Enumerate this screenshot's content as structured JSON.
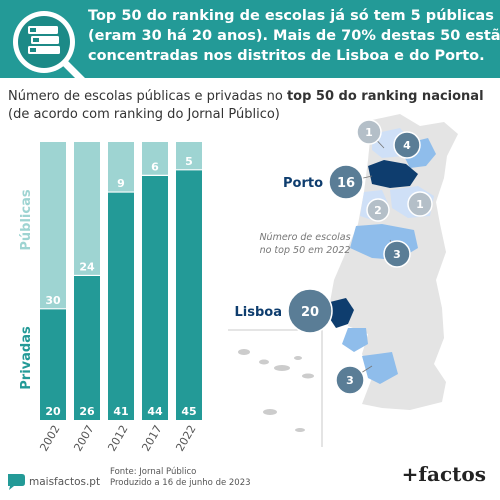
{
  "header": {
    "headline_lines": [
      "Top 50 do ranking de escolas já só tem 5 públicas",
      "(eram 30 há 20 anos). Mais de 70% destas 50 estão",
      "concentradas nos distritos de Lisboa e do Porto."
    ],
    "logo": "books-magnifier-icon"
  },
  "subtitle": {
    "line1_prefix": "Número de escolas públicas e privadas no ",
    "line1_bold": "top 50 do ranking nacional",
    "line2": "(de acordo com ranking do Jornal Público)"
  },
  "chart_data": {
    "type": "bar",
    "stacked": true,
    "categories": [
      "2002",
      "2007",
      "2012",
      "2017",
      "2022"
    ],
    "series": [
      {
        "name": "Privadas",
        "values": [
          20,
          26,
          41,
          44,
          45
        ],
        "color": "#239a97"
      },
      {
        "name": "Públicas",
        "values": [
          30,
          24,
          9,
          6,
          5
        ],
        "color": "#9ed4d2"
      }
    ],
    "ylim": [
      0,
      50
    ],
    "grid": false
  },
  "map": {
    "caption_lines": [
      "Número de escolas",
      "no top 50 em 2022"
    ],
    "districts": [
      {
        "label": "",
        "value": "1"
      },
      {
        "label": "",
        "value": "4"
      },
      {
        "label": "Porto",
        "value": "16"
      },
      {
        "label": "",
        "value": "2"
      },
      {
        "label": "",
        "value": "1"
      },
      {
        "label": "",
        "value": "3"
      },
      {
        "label": "Lisboa",
        "value": "20"
      },
      {
        "label": "",
        "value": "3"
      }
    ],
    "colors": {
      "base": "#e4e4e4",
      "light": "#cfe0f7",
      "mid": "#8fbdeb",
      "dark": "#0e3d6e",
      "bubble": "#5a7d96",
      "bubble_light": "#b4bfc8"
    }
  },
  "footer": {
    "site": "maisfactos.pt",
    "source": "Fonte: Jornal Público",
    "date": "Produzido a 16 de junho de 2023",
    "brand": "+factos"
  }
}
